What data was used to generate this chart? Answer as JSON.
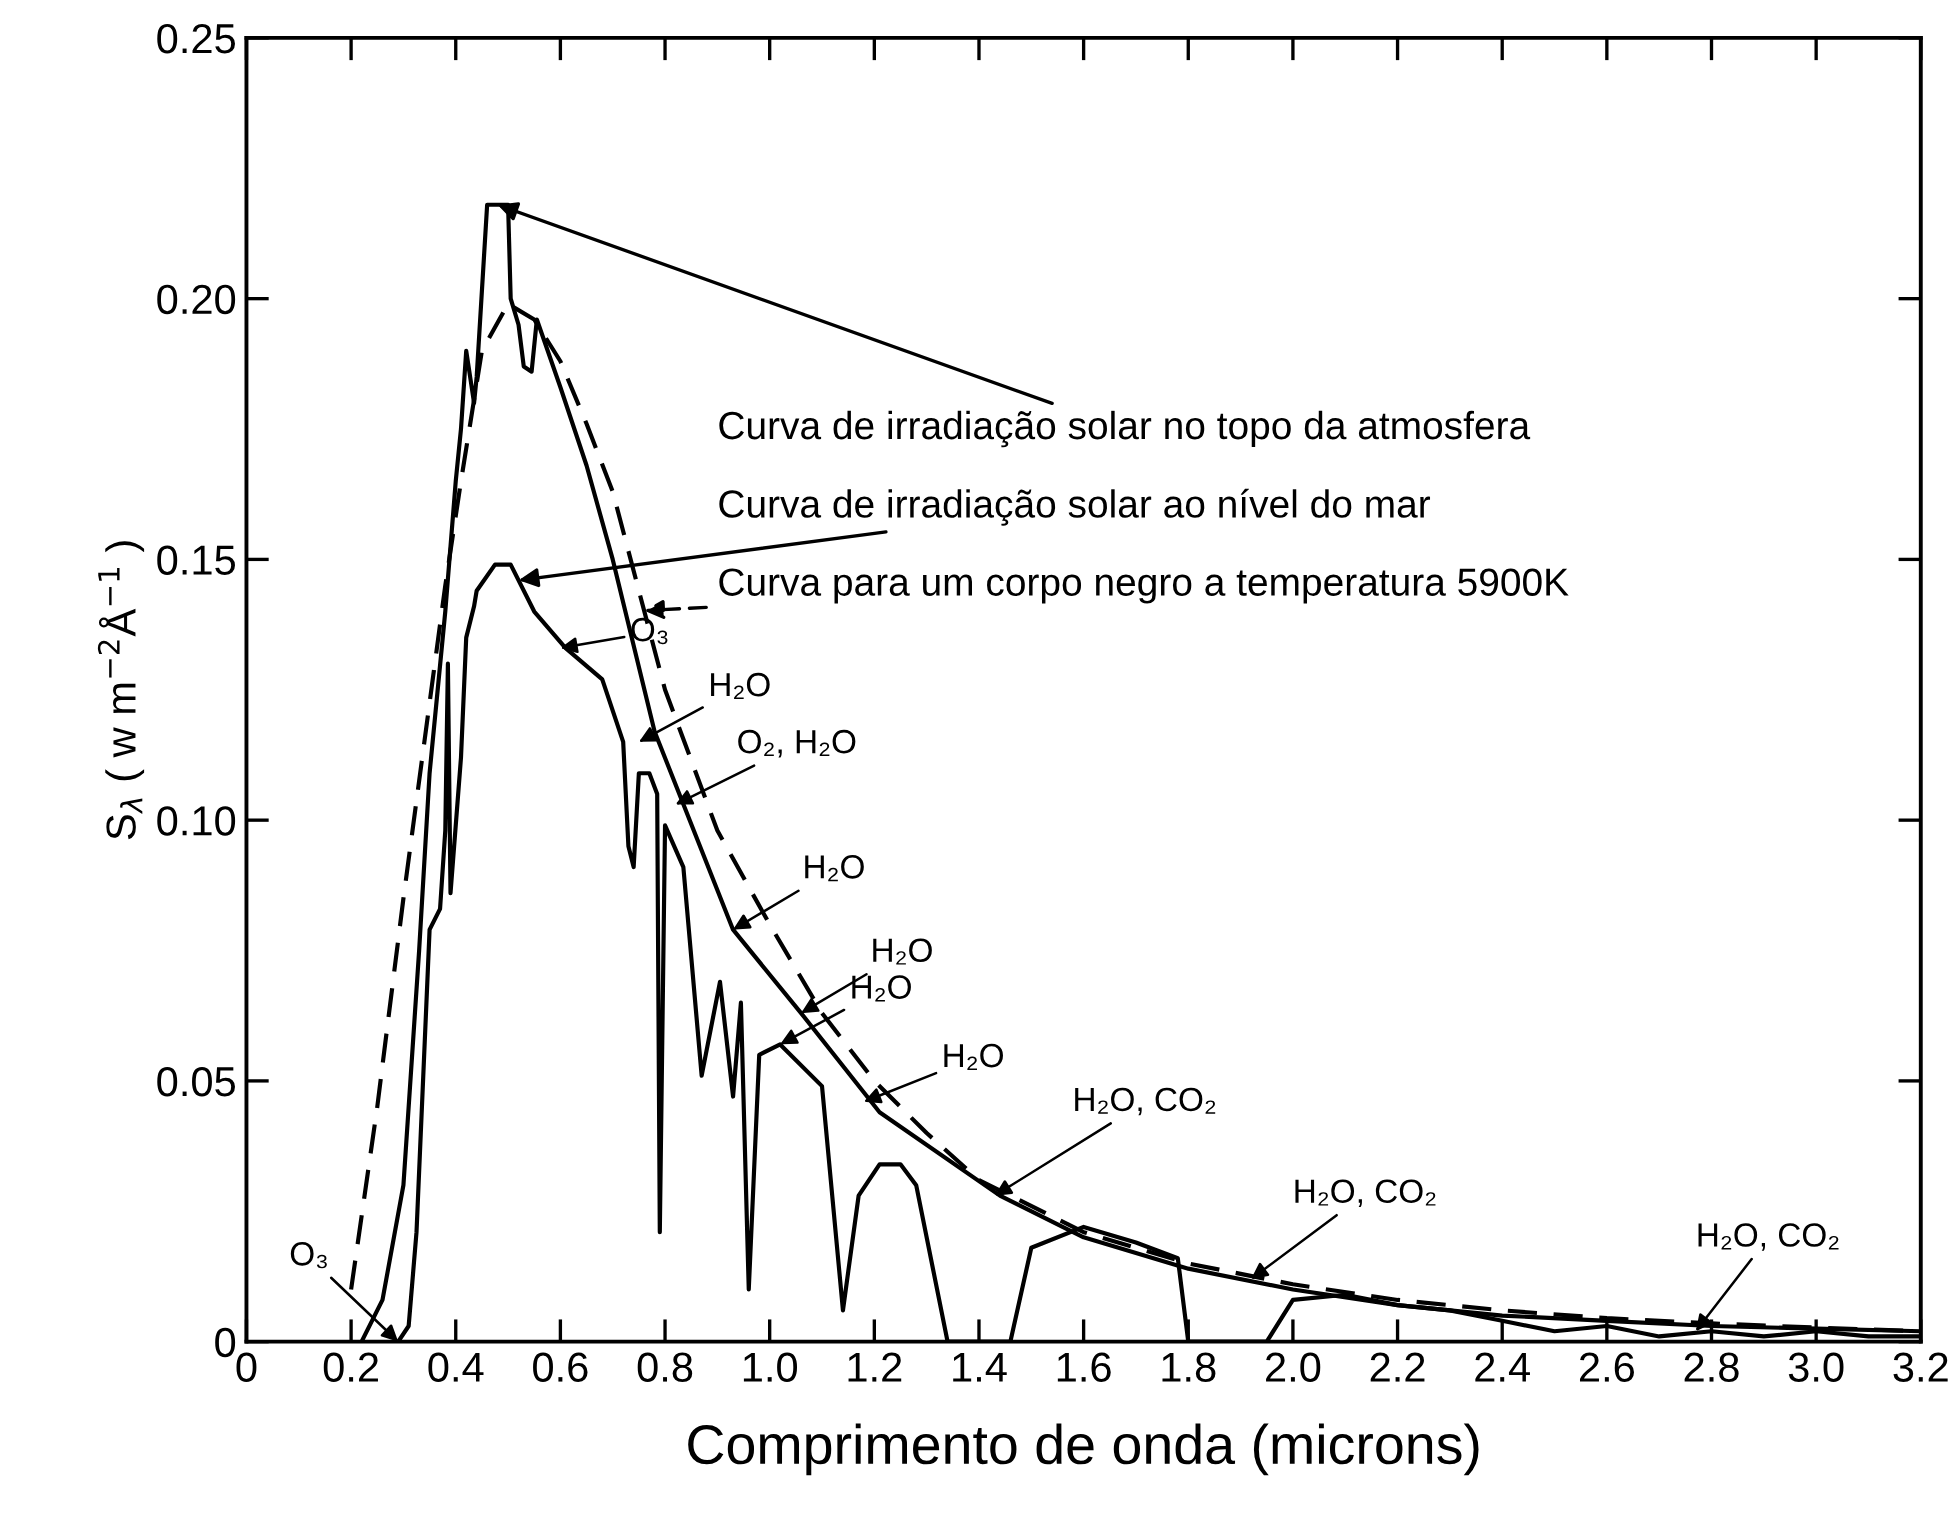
{
  "chart_data": {
    "type": "line",
    "xlabel": "Comprimento de onda (microns)",
    "ylabel": "S$_{λ}$ ( w m$^{−2}$Å$^{−1}$ )",
    "xlim": [
      0,
      3.2
    ],
    "ylim": [
      0,
      0.25
    ],
    "xticks": [
      0,
      0.2,
      0.4,
      0.6,
      0.8,
      {
        "value": 1,
        "label": "1.0"
      },
      1.2,
      1.4,
      1.6,
      1.8,
      {
        "value": 2,
        "label": "2.0"
      },
      2.2,
      2.4,
      2.6,
      2.8,
      {
        "value": 3,
        "label": "3.0"
      },
      3.2
    ],
    "yticks": [
      0,
      {
        "value": 0.05,
        "label": "0.05"
      },
      {
        "value": 0.1,
        "label": "0.10"
      },
      {
        "value": 0.15,
        "label": "0.15"
      },
      {
        "value": 0.2,
        "label": "0.20"
      },
      {
        "value": 0.25,
        "label": "0.25"
      }
    ],
    "grid": false,
    "legend": "right",
    "marker": "none",
    "series": [
      {
        "name": "Curva de irradiação solar no topo da atmosfera",
        "color": "#000000",
        "line_style": "solid",
        "x": [
          0.22,
          0.26,
          0.3,
          0.33,
          0.35,
          0.38,
          0.4,
          0.41,
          0.42,
          0.435,
          0.44,
          0.46,
          0.5,
          0.505,
          0.52,
          0.53,
          0.545,
          0.555,
          0.6,
          0.65,
          0.7,
          0.78,
          0.93,
          1.06,
          1.21,
          1.44,
          1.6,
          1.8,
          2.0,
          2.2,
          2.4,
          2.6,
          2.8,
          3.0,
          3.2
        ],
        "values": [
          0,
          0.008,
          0.03,
          0.075,
          0.109,
          0.14,
          0.165,
          0.175,
          0.19,
          0.18,
          0.185,
          0.218,
          0.218,
          0.2,
          0.195,
          0.187,
          0.186,
          0.196,
          0.183,
          0.168,
          0.15,
          0.117,
          0.079,
          0.063,
          0.044,
          0.028,
          0.02,
          0.014,
          0.01,
          0.007,
          0.005,
          0.004,
          0.003,
          0.0025,
          0.002
        ]
      },
      {
        "name": "Curva de irradiação solar ao nível do mar",
        "color": "#000000",
        "line_style": "solid",
        "x": [
          0.29,
          0.31,
          0.325,
          0.35,
          0.37,
          0.38,
          0.385,
          0.39,
          0.41,
          0.42,
          0.435,
          0.44,
          0.475,
          0.505,
          0.55,
          0.61,
          0.68,
          0.72,
          0.73,
          0.74,
          0.75,
          0.77,
          0.785,
          0.79,
          0.8,
          0.835,
          0.87,
          0.905,
          0.93,
          0.945,
          0.96,
          0.98,
          1.02,
          1.1,
          1.14,
          1.17,
          1.21,
          1.25,
          1.28,
          1.34,
          1.46,
          1.5,
          1.6,
          1.7,
          1.78,
          1.8,
          1.95,
          2.0,
          2.1,
          2.2,
          2.3,
          2.4,
          2.5,
          2.6,
          2.7,
          2.8,
          2.9,
          3.0,
          3.1,
          3.2
        ],
        "values": [
          0,
          0.003,
          0.021,
          0.079,
          0.083,
          0.098,
          0.13,
          0.086,
          0.112,
          0.135,
          0.141,
          0.144,
          0.149,
          0.149,
          0.14,
          0.133,
          0.127,
          0.115,
          0.095,
          0.091,
          0.109,
          0.109,
          0.105,
          0.021,
          0.099,
          0.091,
          0.051,
          0.069,
          0.047,
          0.065,
          0.01,
          0.055,
          0.057,
          0.049,
          0.006,
          0.028,
          0.034,
          0.034,
          0.03,
          0,
          0,
          0.018,
          0.022,
          0.019,
          0.016,
          0,
          0,
          0.008,
          0.009,
          0.007,
          0.006,
          0.004,
          0.002,
          0.003,
          0.001,
          0.002,
          0.001,
          0.002,
          0.001,
          0.001
        ]
      },
      {
        "name": "Curva para um corpo negro a temperatura 5900K",
        "color": "#000000",
        "line_style": "dashed",
        "x": [
          0.2,
          0.25,
          0.3,
          0.34,
          0.38,
          0.41,
          0.45,
          0.5,
          0.55,
          0.6,
          0.65,
          0.7,
          0.8,
          0.9,
          1.0,
          1.1,
          1.2,
          1.3,
          1.4,
          1.6,
          1.8,
          2.0,
          2.2,
          2.4,
          2.6,
          2.8,
          3.0,
          3.2
        ],
        "values": [
          0.01,
          0.045,
          0.085,
          0.115,
          0.145,
          0.165,
          0.19,
          0.199,
          0.196,
          0.188,
          0.176,
          0.163,
          0.125,
          0.098,
          0.08,
          0.063,
          0.05,
          0.04,
          0.031,
          0.021,
          0.015,
          0.011,
          0.008,
          0.006,
          0.0045,
          0.0035,
          0.0027,
          0.002
        ]
      }
    ],
    "annotations": [
      {
        "text": "O₃",
        "x": 0.29,
        "y": 0
      },
      {
        "text": "O₃",
        "x": 0.6,
        "y": 0.133
      },
      {
        "text": "H₂O",
        "x": 0.75,
        "y": 0.115
      },
      {
        "text": "O₂, H₂O",
        "x": 0.82,
        "y": 0.103
      },
      {
        "text": "H₂O",
        "x": 0.93,
        "y": 0.079
      },
      {
        "text": "H₂O",
        "x": 1.06,
        "y": 0.063
      },
      {
        "text": "H₂O",
        "x": 1.02,
        "y": 0.057
      },
      {
        "text": "H₂O",
        "x": 1.18,
        "y": 0.046
      },
      {
        "text": "H₂O, CO₂",
        "x": 1.43,
        "y": 0.028
      },
      {
        "text": "H₂O, CO₂",
        "x": 1.92,
        "y": 0.012
      },
      {
        "text": "H₂O, CO₂",
        "x": 2.77,
        "y": 0.002
      }
    ]
  }
}
